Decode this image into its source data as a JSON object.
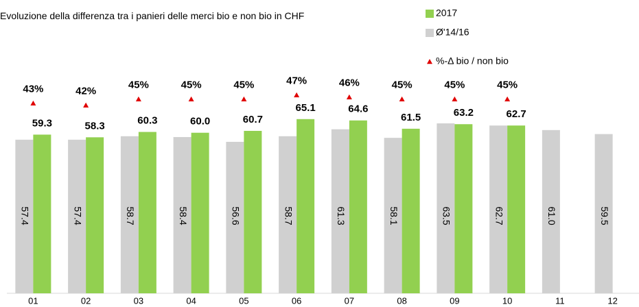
{
  "chart_data": {
    "type": "bar",
    "title": "Evoluzione della differenza tra i panieri delle merci bio e non bio in CHF",
    "categories": [
      "01",
      "02",
      "03",
      "04",
      "05",
      "06",
      "07",
      "08",
      "09",
      "10",
      "11",
      "12"
    ],
    "ylim": [
      0,
      84
    ],
    "y2lim": [
      -50,
      60
    ],
    "legend": "top-right",
    "series": [
      {
        "name": "Ø'14/16",
        "color": "#d0d0d0",
        "values": [
          57.4,
          57.4,
          58.7,
          58.4,
          56.6,
          58.7,
          61.3,
          58.1,
          63.5,
          62.7,
          61.0,
          59.5
        ],
        "value_labels": [
          "57.4",
          "57.4",
          "58.7",
          "58.4",
          "56.6",
          "58.7",
          "61.3",
          "58.1",
          "63.5",
          "62.7",
          "61.0",
          "59.5"
        ]
      },
      {
        "name": "2017",
        "color": "#92d050",
        "values": [
          59.3,
          58.3,
          60.3,
          60.0,
          60.7,
          65.1,
          64.6,
          61.5,
          63.2,
          62.7,
          null,
          null
        ],
        "value_labels": [
          "59.3",
          "58.3",
          "60.3",
          "60.0",
          "60.7",
          "65.1",
          "64.6",
          "61.5",
          "63.2",
          "62.7",
          null,
          null
        ]
      },
      {
        "name": "%-Δ bio / non bio",
        "color": "#e00000",
        "type": "marker",
        "axis": "y2",
        "values": [
          43,
          42,
          45,
          45,
          45,
          47,
          46,
          45,
          45,
          45,
          null,
          null
        ],
        "value_labels": [
          "43%",
          "42%",
          "45%",
          "45%",
          "45%",
          "47%",
          "46%",
          "45%",
          "45%",
          "45%",
          null,
          null
        ]
      }
    ]
  }
}
